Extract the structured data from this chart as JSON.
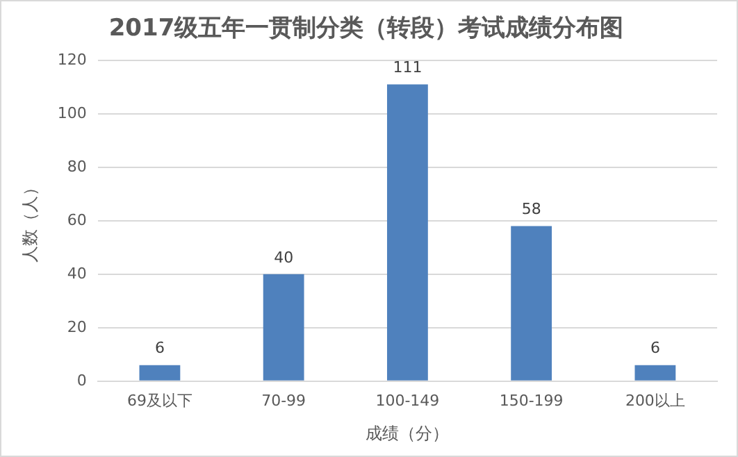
{
  "chart_data": {
    "type": "bar",
    "title": "2017级五年一贯制分类（转段）考试成绩分布图",
    "xlabel": "成绩（分）",
    "ylabel": "人数（人）",
    "categories": [
      "69及以下",
      "70-99",
      "100-149",
      "150-199",
      "200以上"
    ],
    "values": [
      6,
      40,
      111,
      58,
      6
    ],
    "color": "#4f81bd",
    "ylim": [
      0,
      120
    ],
    "yticks": [
      0,
      20,
      40,
      60,
      80,
      100,
      120
    ],
    "grid": "y",
    "legend": false,
    "data_labels": true
  }
}
